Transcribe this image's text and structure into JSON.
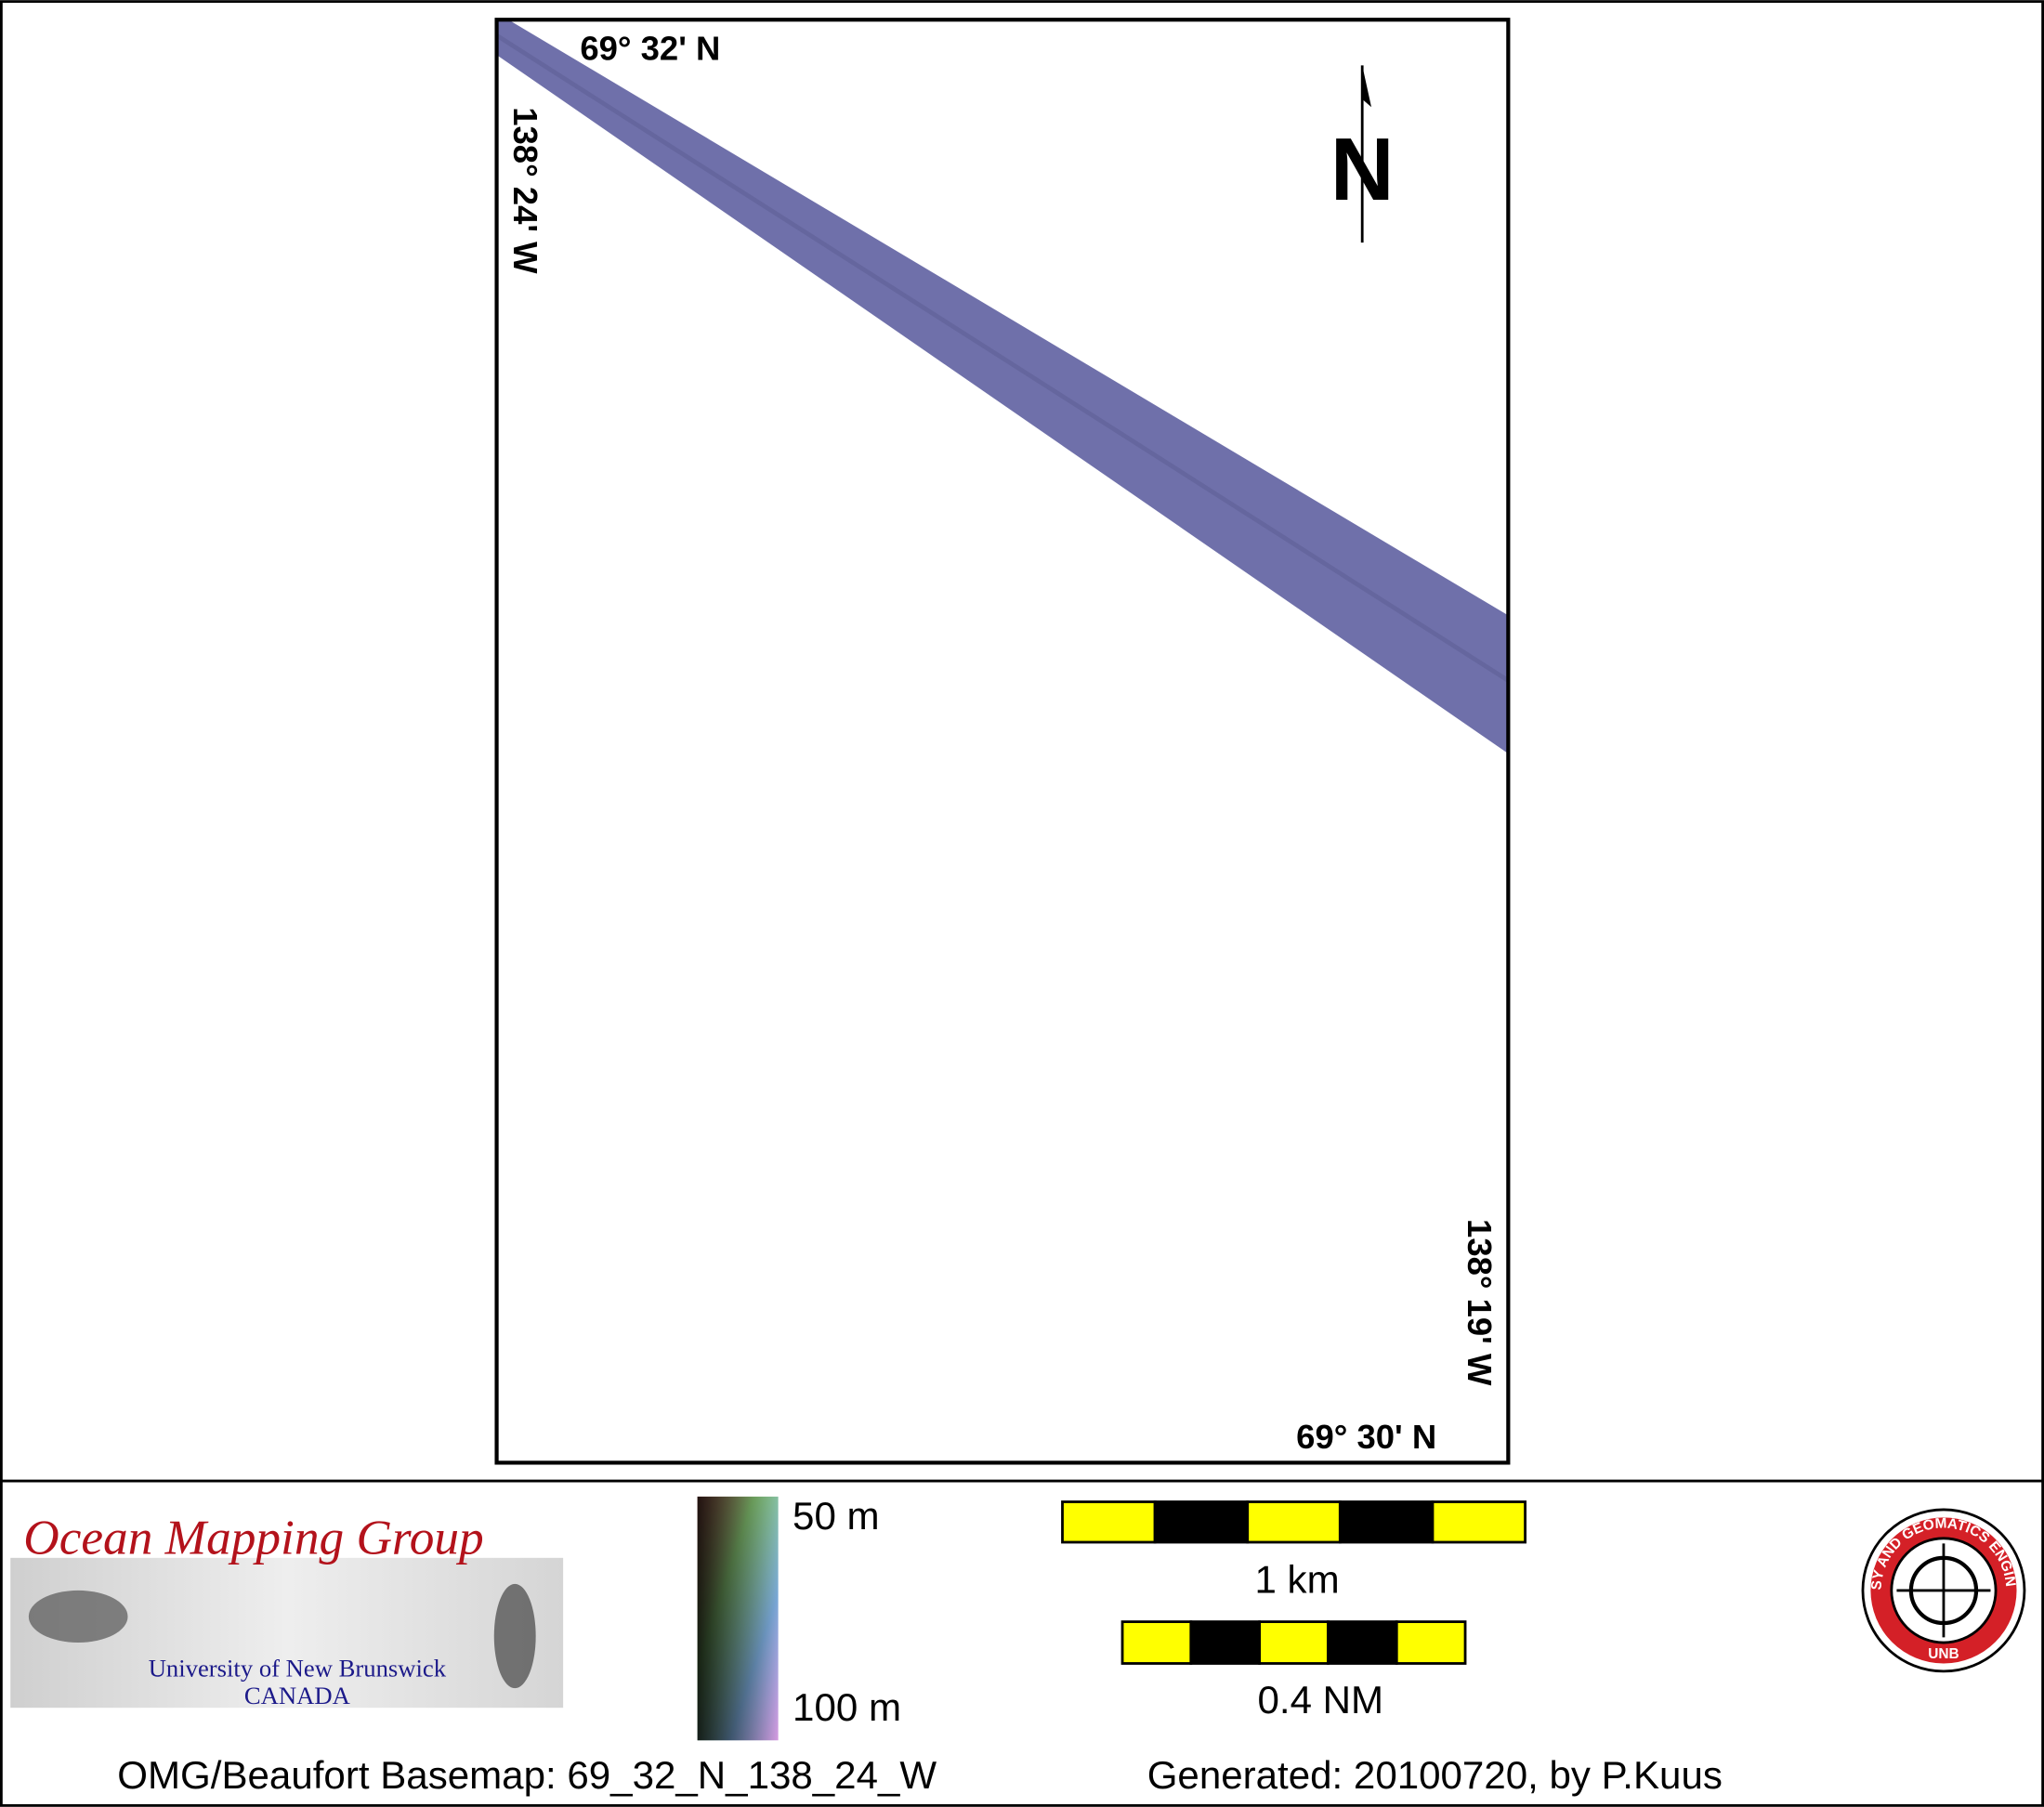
{
  "map": {
    "top_lat": "69° 32' N",
    "left_lon": "138° 24' W",
    "right_lon": "138° 19' W",
    "bottom_lat": "69° 30' N",
    "north": "N"
  },
  "logo": {
    "title": "Ocean Mapping Group",
    "university": "University of New Brunswick",
    "country": "CANADA"
  },
  "depth_legend": {
    "top": "50 m",
    "bottom": "100 m"
  },
  "scale_bars": [
    {
      "label": "1 km"
    },
    {
      "label": "0.4 NM"
    }
  ],
  "emblem": {
    "ring_text": "GEODESY AND GEOMATICS ENGINEERING",
    "bottom": "UNB"
  },
  "footer": {
    "basemap": "OMG/Beaufort Basemap: 69_32_N_138_24_W",
    "generated": "Generated: 20100720, by P.Kuus"
  }
}
